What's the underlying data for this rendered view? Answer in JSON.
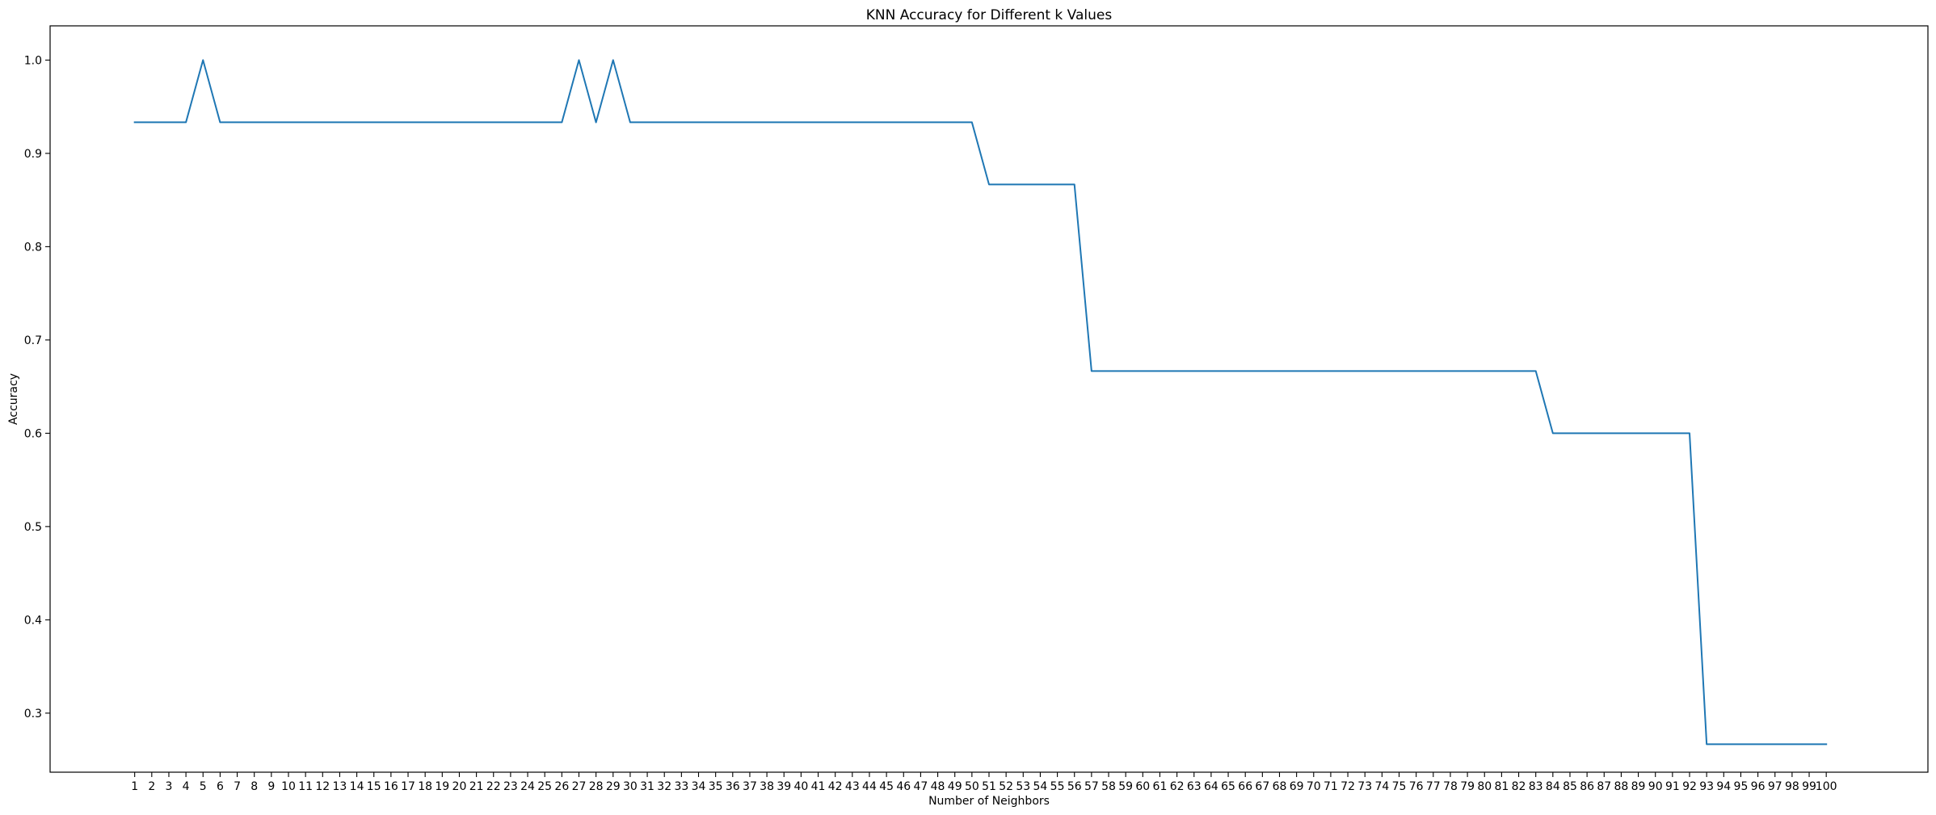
{
  "chart_data": {
    "type": "line",
    "title": "KNN Accuracy for Different k Values",
    "xlabel": "Number of Neighbors",
    "ylabel": "Accuracy",
    "x": [
      1,
      2,
      3,
      4,
      5,
      6,
      7,
      8,
      9,
      10,
      11,
      12,
      13,
      14,
      15,
      16,
      17,
      18,
      19,
      20,
      21,
      22,
      23,
      24,
      25,
      26,
      27,
      28,
      29,
      30,
      31,
      32,
      33,
      34,
      35,
      36,
      37,
      38,
      39,
      40,
      41,
      42,
      43,
      44,
      45,
      46,
      47,
      48,
      49,
      50,
      51,
      52,
      53,
      54,
      55,
      56,
      57,
      58,
      59,
      60,
      61,
      62,
      63,
      64,
      65,
      66,
      67,
      68,
      69,
      70,
      71,
      72,
      73,
      74,
      75,
      76,
      77,
      78,
      79,
      80,
      81,
      82,
      83,
      84,
      85,
      86,
      87,
      88,
      89,
      90,
      91,
      92,
      93,
      94,
      95,
      96,
      97,
      98,
      99,
      100
    ],
    "xticks": [
      1,
      2,
      3,
      4,
      5,
      6,
      7,
      8,
      9,
      10,
      11,
      12,
      13,
      14,
      15,
      16,
      17,
      18,
      19,
      20,
      21,
      22,
      23,
      24,
      25,
      26,
      27,
      28,
      29,
      30,
      31,
      32,
      33,
      34,
      35,
      36,
      37,
      38,
      39,
      40,
      41,
      42,
      43,
      44,
      45,
      46,
      47,
      48,
      49,
      50,
      51,
      52,
      53,
      54,
      55,
      56,
      57,
      58,
      59,
      60,
      61,
      62,
      63,
      64,
      65,
      66,
      67,
      68,
      69,
      70,
      71,
      72,
      73,
      74,
      75,
      76,
      77,
      78,
      79,
      80,
      81,
      82,
      83,
      84,
      85,
      86,
      87,
      88,
      89,
      90,
      91,
      92,
      93,
      94,
      95,
      96,
      97,
      98,
      99,
      100
    ],
    "yticks": [
      "0.3",
      "0.4",
      "0.5",
      "0.6",
      "0.7",
      "0.8",
      "0.9",
      "1.0"
    ],
    "xlim": [
      -3.95,
      105.95
    ],
    "ylim": [
      0.2367,
      1.0367
    ],
    "grid": false,
    "series": [
      {
        "color": "#1f77b4",
        "values": [
          0.9333,
          0.9333,
          0.9333,
          0.9333,
          1.0,
          0.9333,
          0.9333,
          0.9333,
          0.9333,
          0.9333,
          0.9333,
          0.9333,
          0.9333,
          0.9333,
          0.9333,
          0.9333,
          0.9333,
          0.9333,
          0.9333,
          0.9333,
          0.9333,
          0.9333,
          0.9333,
          0.9333,
          0.9333,
          0.9333,
          1.0,
          0.9333,
          1.0,
          0.9333,
          0.9333,
          0.9333,
          0.9333,
          0.9333,
          0.9333,
          0.9333,
          0.9333,
          0.9333,
          0.9333,
          0.9333,
          0.9333,
          0.9333,
          0.9333,
          0.9333,
          0.9333,
          0.9333,
          0.9333,
          0.9333,
          0.9333,
          0.9333,
          0.8667,
          0.8667,
          0.8667,
          0.8667,
          0.8667,
          0.8667,
          0.6667,
          0.6667,
          0.6667,
          0.6667,
          0.6667,
          0.6667,
          0.6667,
          0.6667,
          0.6667,
          0.6667,
          0.6667,
          0.6667,
          0.6667,
          0.6667,
          0.6667,
          0.6667,
          0.6667,
          0.6667,
          0.6667,
          0.6667,
          0.6667,
          0.6667,
          0.6667,
          0.6667,
          0.6667,
          0.6667,
          0.6667,
          0.6,
          0.6,
          0.6,
          0.6,
          0.6,
          0.6,
          0.6,
          0.6,
          0.6,
          0.2667,
          0.2667,
          0.2667,
          0.2667,
          0.2667,
          0.2667,
          0.2667,
          0.2667
        ]
      }
    ]
  }
}
